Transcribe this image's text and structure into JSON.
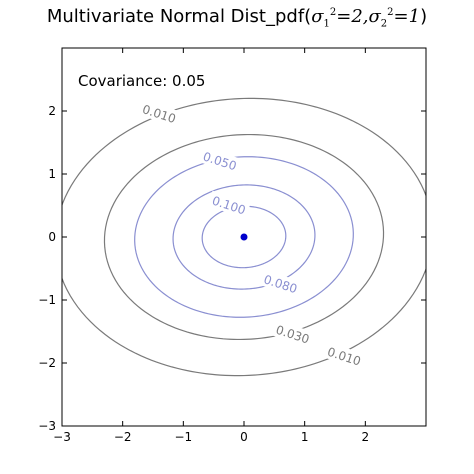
{
  "chart_data": {
    "type": "contour",
    "title_prefix": "Multivariate Normal Dist_pdf(",
    "title_math": {
      "sigma1_sq": "2",
      "sigma2_sq": "1"
    },
    "title_suffix": ")",
    "annotation": "Covariance: 0.05",
    "xlim": [
      -3,
      3
    ],
    "ylim": [
      -3,
      3
    ],
    "xticks": [
      -3,
      -2,
      -1,
      0,
      1,
      2
    ],
    "yticks": [
      -3,
      -2,
      -1,
      0,
      1,
      2
    ],
    "xtick_labels": [
      "−3",
      "−2",
      "−1",
      "0",
      "1",
      "2"
    ],
    "ytick_labels": [
      "−3",
      "−2",
      "−1",
      "0",
      "1",
      "2"
    ],
    "mean": [
      0,
      0
    ],
    "variances": [
      2,
      1
    ],
    "covariance": 0.05,
    "levels": [
      0.01,
      0.03,
      0.05,
      0.08,
      0.1
    ],
    "contour_labels": [
      {
        "text": "0.010",
        "level": 0.01,
        "x": -1.4,
        "y": 1.95
      },
      {
        "text": "0.050",
        "level": 0.05,
        "x": -0.4,
        "y": 1.2
      },
      {
        "text": "0.100",
        "level": 0.1,
        "x": -0.25,
        "y": 0.5
      },
      {
        "text": "0.080",
        "level": 0.08,
        "x": 0.6,
        "y": -0.75
      },
      {
        "text": "0.030",
        "level": 0.03,
        "x": 0.8,
        "y": -1.55
      },
      {
        "text": "0.010",
        "level": 0.01,
        "x": 1.65,
        "y": -1.9
      }
    ],
    "grid": false,
    "colors": {
      "contour_inner": "#8a8fd1",
      "contour_outer": "#7a7a7a",
      "mean_point": "#0000cc",
      "axes": "#000000"
    }
  }
}
